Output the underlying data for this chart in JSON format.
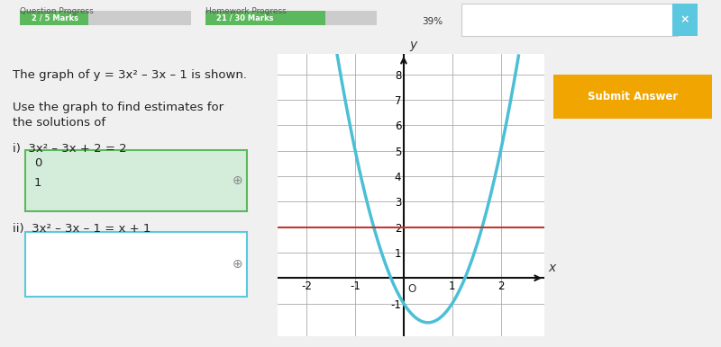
{
  "bg_color": "#f0f0f0",
  "white": "#ffffff",
  "graph_xlim": [
    -2.6,
    2.9
  ],
  "graph_ylim": [
    -2.3,
    8.8
  ],
  "parabola_color": "#4bbfd6",
  "hline_color": "#c0392b",
  "hline_y": 2,
  "grid_color": "#aaaaaa",
  "axis_color": "#111111",
  "text_color": "#222222",
  "progress_green": "#5cb85c",
  "answer_btn_color": "#f0a500",
  "box1_bg": "#d4edda",
  "box1_border": "#5cb85c",
  "box2_bg": "#ffffff",
  "box2_border": "#5bc8e0",
  "title_text": "The graph of y = 3x² – 3x – 1 is shown.",
  "subtitle1": "Use the graph to find estimates for",
  "subtitle2": "the solutions of",
  "qi_text": "i)  3x² – 3x + 2 = 2",
  "qii_text": "ii)  3x² – 3x – 1 = x + 1",
  "box1_values": [
    "0",
    "1"
  ],
  "q_progress_label": "Question Progress",
  "q_progress_value": "2 / 5 Marks",
  "hw_progress_label": "Homework Progress",
  "hw_progress_value": "21 / 30 Marks",
  "pct_label": "39%",
  "xticks": [
    -2,
    -1,
    1,
    2
  ],
  "yticks": [
    -1,
    1,
    2,
    3,
    4,
    5,
    6,
    7,
    8
  ]
}
